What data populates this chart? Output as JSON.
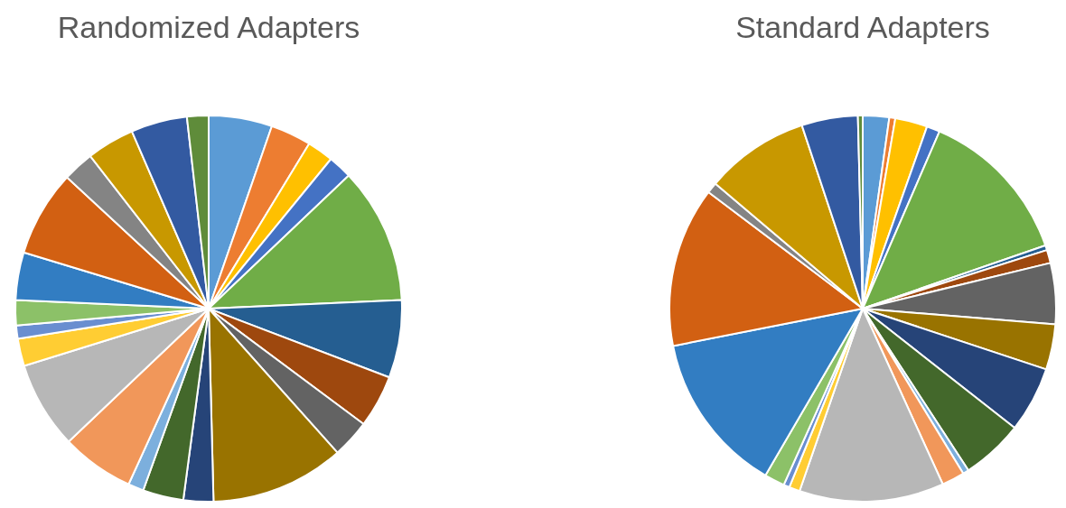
{
  "chart_data": [
    {
      "type": "pie",
      "title": "Randomized Adapters",
      "categories": [
        null,
        null,
        null,
        null,
        null,
        null,
        null,
        null,
        null,
        null,
        null,
        null,
        null,
        null,
        null,
        null,
        null,
        null,
        null,
        null,
        null,
        null,
        null
      ],
      "values": [
        5.3,
        3.4,
        2.2,
        2.0,
        11.4,
        6.5,
        4.4,
        3.2,
        11.2,
        2.5,
        3.4,
        1.3,
        6.1,
        7.3,
        2.3,
        1.1,
        2.1,
        4.0,
        7.2,
        2.6,
        4.0,
        4.7,
        1.8
      ],
      "colors": [
        "#5b9bd5",
        "#ed7d31",
        "#ffc000",
        "#4472c4",
        "#70ad47",
        "#255e91",
        "#9e480e",
        "#636363",
        "#997300",
        "#264478",
        "#43682b",
        "#7cafdd",
        "#f1975a",
        "#b7b7b7",
        "#ffcd33",
        "#698ed0",
        "#8cc168",
        "#327dc2",
        "#d26012",
        "#848484",
        "#c89800",
        "#335aa1",
        "#5f8c3a"
      ]
    },
    {
      "type": "pie",
      "title": "Standard Adapters",
      "categories": [
        null,
        null,
        null,
        null,
        null,
        null,
        null,
        null,
        null,
        null,
        null,
        null,
        null,
        null,
        null,
        null,
        null,
        null,
        null,
        null,
        null,
        null,
        null
      ],
      "values": [
        2.2,
        0.5,
        2.7,
        1.1,
        13.2,
        0.4,
        1.1,
        5.1,
        3.8,
        5.5,
        5.2,
        0.5,
        1.9,
        12.1,
        0.9,
        0.5,
        1.7,
        13.5,
        13.4,
        0.9,
        8.7,
        4.7,
        0.4
      ],
      "colors": [
        "#5b9bd5",
        "#ed7d31",
        "#ffc000",
        "#4472c4",
        "#70ad47",
        "#255e91",
        "#9e480e",
        "#636363",
        "#997300",
        "#264478",
        "#43682b",
        "#7cafdd",
        "#f1975a",
        "#b7b7b7",
        "#ffcd33",
        "#698ed0",
        "#8cc168",
        "#327dc2",
        "#d26012",
        "#848484",
        "#c89800",
        "#335aa1",
        "#5f8c3a"
      ]
    }
  ]
}
